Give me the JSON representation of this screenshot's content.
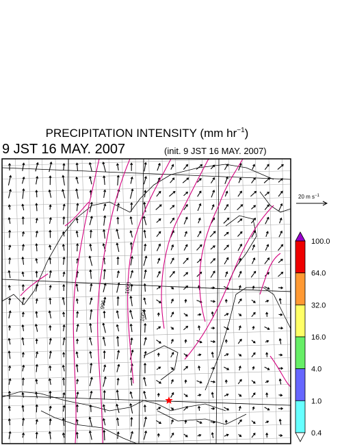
{
  "title": {
    "text": "PRECIPITATION INTENSITY (mm hr",
    "superscript": "−1",
    "close": ")"
  },
  "valid_time": "9 JST 16 MAY. 2007",
  "init_time": "(init. 9 JST 16 MAY. 2007)",
  "wind_scale": {
    "text": "20 m s",
    "superscript": "−1"
  },
  "colorbar": {
    "labels": [
      "100.0",
      "64.0",
      "32.0",
      "16.0",
      "4.0",
      "1.0",
      "0.4"
    ],
    "colors": [
      "#9900cc",
      "#ee0000",
      "#ff9933",
      "#ffff66",
      "#66ee66",
      "#6666ff",
      "#66ffff",
      "#ffffff"
    ]
  },
  "contour_labels": [
    "996",
    "1000",
    "1004"
  ]
}
